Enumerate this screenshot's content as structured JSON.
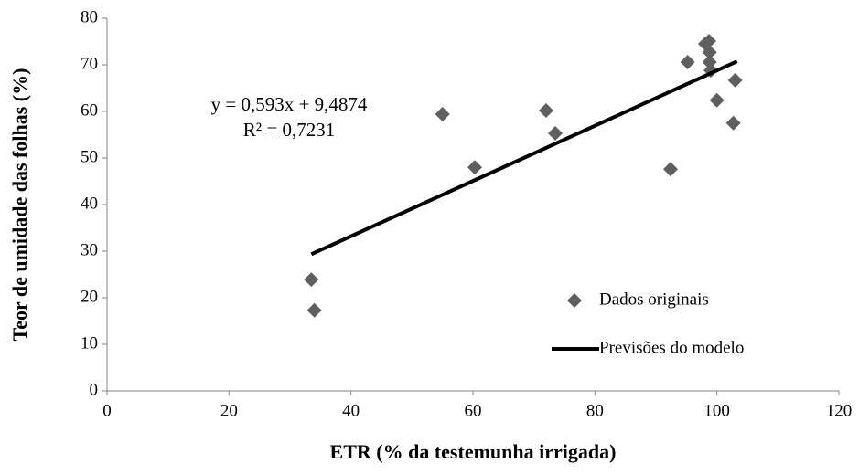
{
  "chart_data": {
    "type": "scatter",
    "xlabel": "ETR (% da testemunha irrigada)",
    "ylabel": "Teor de umidade das folhas (%)",
    "annotations": [
      "y = 0,593x + 9,4874",
      "R² = 0,7231"
    ],
    "xlim": [
      0,
      120
    ],
    "xticks": [
      0,
      20,
      40,
      60,
      80,
      100,
      120
    ],
    "ylim": [
      0,
      80
    ],
    "yticks": [
      0,
      10,
      20,
      30,
      40,
      50,
      60,
      70,
      80
    ],
    "grid": false,
    "legend": "lower right",
    "series": [
      {
        "name": "Dados originais",
        "type": "scatter",
        "color": "#5f5f5f",
        "x": [
          33.5,
          34,
          55,
          60.3,
          72,
          73.5,
          92.4,
          95.2,
          98.1,
          98.7,
          98.8,
          98.8,
          99,
          100,
          102.7,
          103
        ],
        "values": [
          23.9,
          17.3,
          59.4,
          48,
          60.2,
          55.3,
          47.6,
          70.6,
          74.5,
          75.1,
          72.7,
          70.6,
          68.8,
          62.4,
          57.5,
          66.7
        ]
      },
      {
        "name": "Previsões do modelo",
        "type": "line",
        "color": "#000000",
        "x": [
          33.5,
          103.3
        ],
        "values": [
          29.35,
          70.74
        ]
      }
    ]
  }
}
